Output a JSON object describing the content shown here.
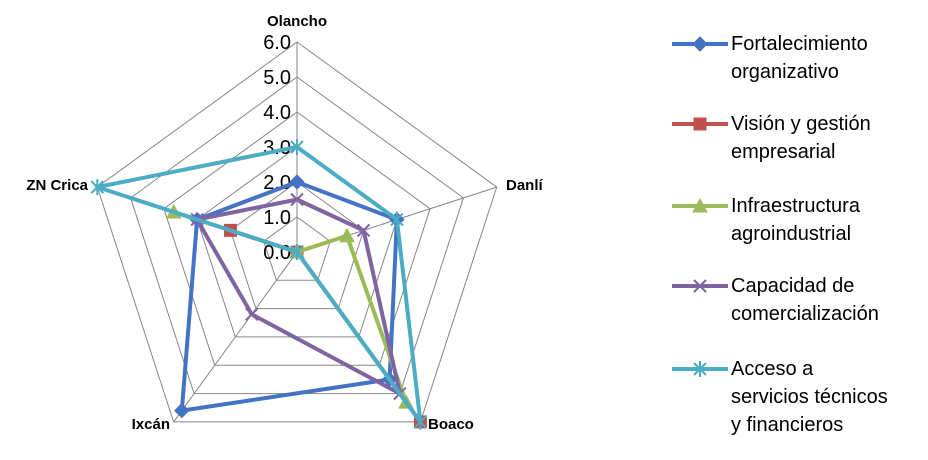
{
  "chart_data": {
    "type": "radar",
    "categories": [
      "Olancho",
      "Danlí",
      "Boaco",
      "Ixcán",
      "ZN Crica"
    ],
    "rlim": [
      0,
      6
    ],
    "ticks": [
      "0.0",
      "1.0",
      "2.0",
      "3.0",
      "4.0",
      "5.0",
      "6.0"
    ],
    "grid": true,
    "legend_position": "right",
    "series": [
      {
        "name": "Fortalecimiento organizativo",
        "legend_lines": [
          "Fortalecimiento",
          "organizativo"
        ],
        "values": [
          2.0,
          3.0,
          4.5,
          5.6,
          3.0
        ],
        "color": "#4472C4",
        "marker": "diamond"
      },
      {
        "name": "Visión y gestión empresarial",
        "legend_lines": [
          "Visión y gestión",
          "empresarial"
        ],
        "values": [
          0.0,
          0.0,
          6.0,
          0.0,
          2.0
        ],
        "color": "#C0504D",
        "marker": "square"
      },
      {
        "name": "Infraestructura agroindustrial",
        "legend_lines": [
          "Infraestructura",
          "agroindustrial"
        ],
        "values": [
          0.0,
          1.5,
          5.3,
          0.0,
          3.7
        ],
        "color": "#9BBB59",
        "marker": "triangle"
      },
      {
        "name": "Capacidad de comercialización",
        "legend_lines": [
          "Capacidad de",
          "comercialización"
        ],
        "values": [
          1.5,
          2.0,
          5.0,
          2.2,
          3.0
        ],
        "color": "#8064A2",
        "marker": "x"
      },
      {
        "name": "Acceso a servicios técnicos y financieros",
        "legend_lines": [
          "Acceso a",
          "servicios técnicos",
          "y financieros"
        ],
        "values": [
          3.0,
          3.0,
          6.0,
          0.0,
          6.0
        ],
        "color": "#4BACC6",
        "marker": "star"
      }
    ]
  }
}
